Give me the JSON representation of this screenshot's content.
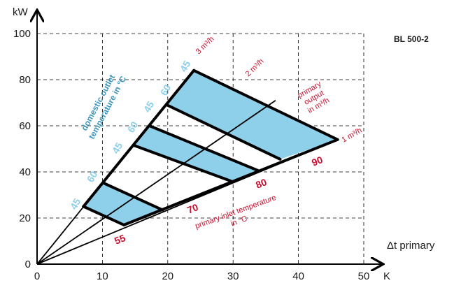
{
  "colors": {
    "band_fill": "#8ecfea",
    "red": "#c8102e",
    "blue_text": "#3c95bd",
    "light_blue_text": "#8ecfea",
    "ink": "#000000"
  },
  "chart_data": {
    "type": "area",
    "title": "BL 500-2",
    "xlabel": "Δt primary",
    "x_unit": "K",
    "y_unit": "kW",
    "xlim": [
      0,
      50
    ],
    "ylim": [
      0,
      100
    ],
    "x_ticks": [
      "0",
      "10",
      "20",
      "30",
      "40",
      "50"
    ],
    "y_ticks": [
      "0",
      "20",
      "40",
      "60",
      "80",
      "100"
    ],
    "grid": true,
    "flow_lines": [
      {
        "label": "3 m³/h",
        "end": [
          24,
          84
        ]
      },
      {
        "label": "2 m³/h",
        "end": [
          36.5,
          71
        ]
      },
      {
        "label": "1 m³/h",
        "end": [
          46,
          54
        ]
      }
    ],
    "flow_axis_title": "primary output in m³/h",
    "inlet_temperature_lines": [
      {
        "label": "55",
        "p3": [
          7.1,
          25
        ],
        "p1": [
          13.3,
          17
        ]
      },
      {
        "label": "70",
        "p3": [
          10.3,
          35
        ],
        "p1": [
          19.2,
          23.5
        ]
      },
      {
        "label": "70",
        "p3": [
          14.8,
          51.5
        ],
        "p1": [
          29.7,
          36
        ]
      },
      {
        "label": "80",
        "p3": [
          17.2,
          60
        ],
        "p1": [
          33.9,
          40.5
        ]
      },
      {
        "label": "80",
        "p3": [
          19.9,
          69
        ],
        "p1": [
          37.2,
          45.5
        ]
      },
      {
        "label": "90",
        "p3": [
          24,
          84
        ],
        "p1": [
          46,
          54
        ]
      }
    ],
    "inlet_axis_title": "primary inlet temperature in °C",
    "inlet_temperature_labels": [
      "55",
      "70",
      "80",
      "90"
    ],
    "outlet_temperature_labels": [
      "45",
      "60",
      "45",
      "60",
      "45",
      "60",
      "45"
    ],
    "outlet_axis_title": "domestic outlet temperature in °C",
    "filled_bands": [
      [
        "55",
        "70"
      ],
      [
        "70",
        "80"
      ],
      [
        "80",
        "90"
      ]
    ]
  },
  "text": {
    "title": "BL 500-2",
    "x_unit": "K",
    "y_unit": "kW",
    "xlabel": "Δt primary",
    "flow_3": "3 m³/h",
    "flow_2": "2 m³/h",
    "flow_1": "1 m³/h",
    "output_line1": "primary",
    "output_line2": "output",
    "output_line3": "in m³/h",
    "inlet_line1": "primary inlet temperature",
    "inlet_line2": "in °C",
    "domestic_line1": "domestic outlet",
    "domestic_line2": "temperature in °C",
    "t55": "55",
    "t70": "70",
    "t80": "80",
    "t90": "90",
    "o45a": "45",
    "o60a": "60",
    "o45b": "45",
    "o60b": "60",
    "o45c": "45",
    "o60c": "60",
    "o45d": "45"
  }
}
